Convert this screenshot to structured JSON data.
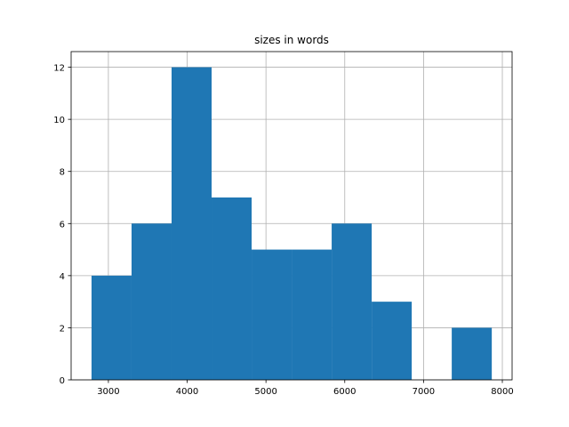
{
  "chart_data": {
    "type": "histogram",
    "title": "sizes in words",
    "bins": [
      2786,
      3294,
      3802,
      4310,
      4818,
      5326,
      5834,
      6342,
      6850,
      7358,
      7866
    ],
    "values": [
      4,
      6,
      12,
      7,
      5,
      5,
      6,
      3,
      0,
      2
    ],
    "color": "#1f77b4",
    "xlim": [
      2527,
      8124
    ],
    "xticks": [
      3000,
      4000,
      5000,
      6000,
      7000,
      8000
    ],
    "ylim": [
      0,
      12.6
    ],
    "yticks": [
      0,
      2,
      4,
      6,
      8,
      10,
      12
    ],
    "grid": true
  }
}
